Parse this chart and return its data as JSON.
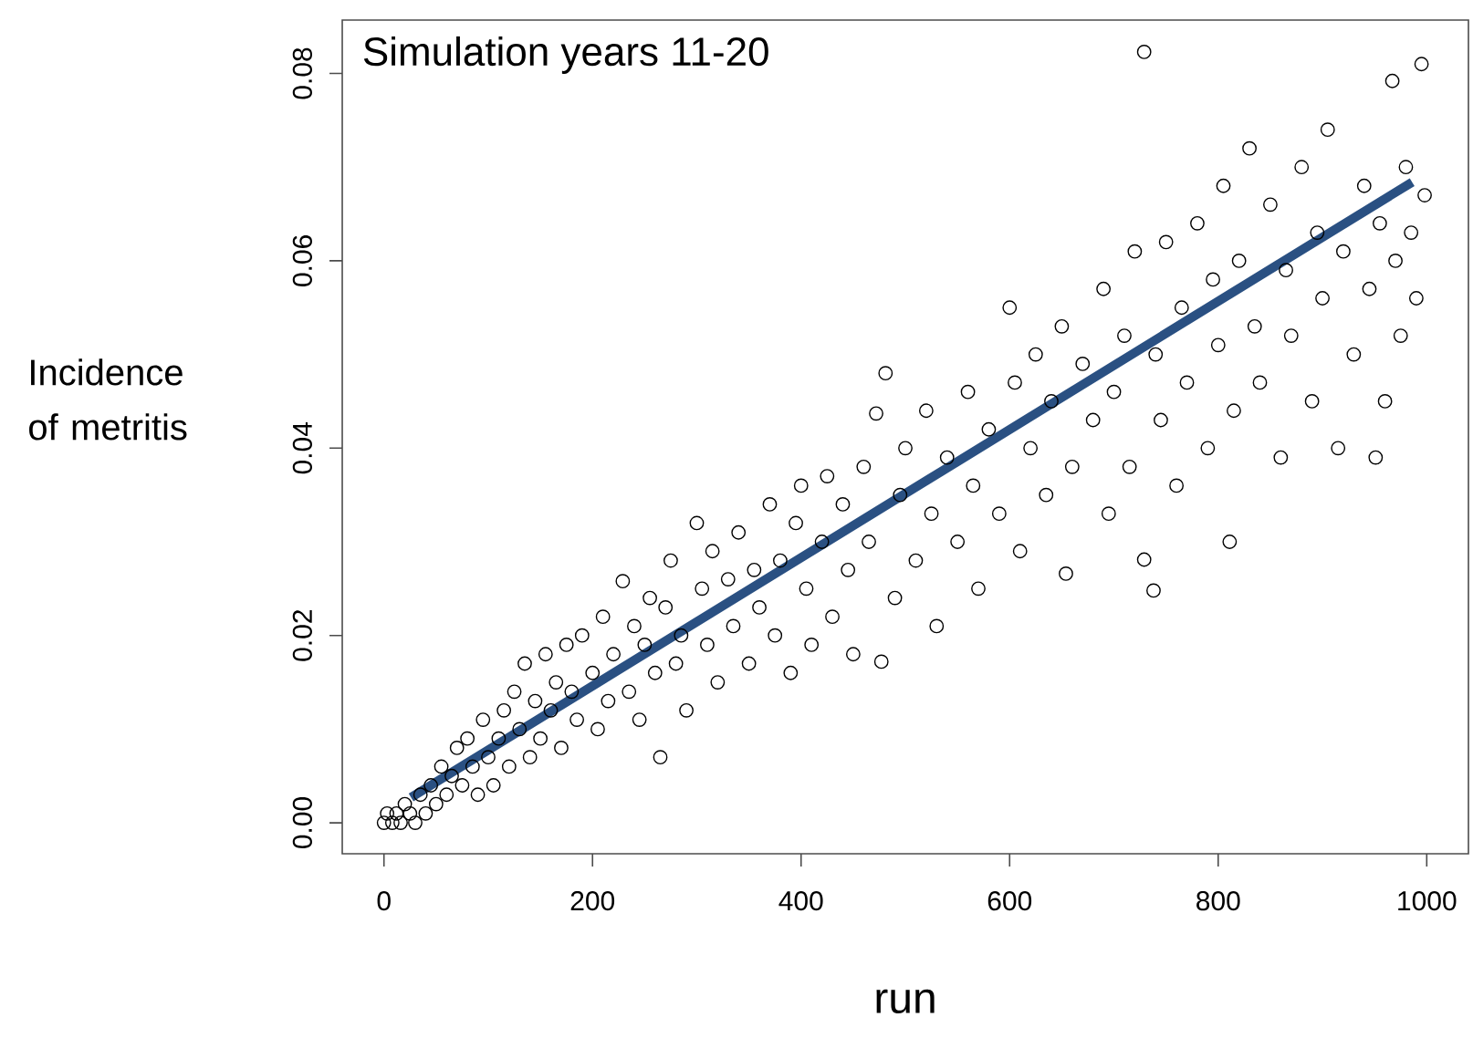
{
  "chart_data": {
    "type": "scatter",
    "title": "Simulation years 11-20",
    "xlabel": "run",
    "ylabel": "Incidence of metritis",
    "xlim": [
      -40,
      1040
    ],
    "ylim": [
      -0.0033,
      0.0857
    ],
    "xticks": [
      0,
      200,
      400,
      600,
      800,
      1000
    ],
    "yticks": [
      {
        "value": 0,
        "label": "0.00"
      },
      {
        "value": 0.02,
        "label": "0.02"
      },
      {
        "value": 0.04,
        "label": "0.04"
      },
      {
        "value": 0.06,
        "label": "0.06"
      },
      {
        "value": 0.08,
        "label": "0.08"
      }
    ],
    "marker": "circle",
    "series": [
      {
        "type": "scatter",
        "color": "#000000",
        "x": [
          0,
          3,
          8,
          12,
          16,
          20,
          25,
          30,
          35,
          40,
          45,
          50,
          55,
          60,
          65,
          70,
          75,
          80,
          85,
          90,
          95,
          100,
          105,
          110,
          115,
          120,
          125,
          130,
          135,
          140,
          145,
          150,
          155,
          160,
          165,
          170,
          175,
          180,
          185,
          190,
          200,
          205,
          210,
          215,
          220,
          229,
          235,
          240,
          245,
          250,
          255,
          260,
          265,
          270,
          275,
          280,
          285,
          290,
          300,
          305,
          310,
          315,
          320,
          330,
          335,
          340,
          350,
          355,
          360,
          370,
          375,
          380,
          390,
          395,
          400,
          405,
          410,
          420,
          425,
          430,
          440,
          445,
          450,
          460,
          465,
          472,
          477,
          481,
          490,
          495,
          500,
          510,
          520,
          525,
          530,
          540,
          550,
          560,
          565,
          570,
          580,
          590,
          600,
          605,
          610,
          620,
          625,
          635,
          640,
          650,
          654,
          660,
          670,
          680,
          690,
          695,
          700,
          710,
          715,
          720,
          729,
          729,
          738,
          740,
          745,
          750,
          760,
          765,
          770,
          780,
          790,
          795,
          800,
          805,
          811,
          815,
          820,
          830,
          835,
          840,
          850,
          860,
          865,
          870,
          880,
          890,
          895,
          900,
          905,
          915,
          920,
          930,
          940,
          945,
          951,
          955,
          960,
          967,
          970,
          975,
          980,
          985,
          990,
          995,
          998
        ],
        "values": [
          0,
          0.001,
          0,
          0.001,
          0,
          0.002,
          0.001,
          0,
          0.003,
          0.001,
          0.004,
          0.002,
          0.006,
          0.003,
          0.005,
          0.008,
          0.004,
          0.009,
          0.006,
          0.003,
          0.011,
          0.007,
          0.004,
          0.009,
          0.012,
          0.006,
          0.014,
          0.01,
          0.017,
          0.007,
          0.013,
          0.009,
          0.018,
          0.012,
          0.015,
          0.008,
          0.019,
          0.014,
          0.011,
          0.02,
          0.016,
          0.01,
          0.022,
          0.013,
          0.018,
          0.0258,
          0.014,
          0.021,
          0.011,
          0.019,
          0.024,
          0.016,
          0.007,
          0.023,
          0.028,
          0.017,
          0.02,
          0.012,
          0.032,
          0.025,
          0.019,
          0.029,
          0.015,
          0.026,
          0.021,
          0.031,
          0.017,
          0.027,
          0.023,
          0.034,
          0.02,
          0.028,
          0.016,
          0.032,
          0.036,
          0.025,
          0.019,
          0.03,
          0.037,
          0.022,
          0.034,
          0.027,
          0.018,
          0.038,
          0.03,
          0.0437,
          0.0172,
          0.048,
          0.024,
          0.035,
          0.04,
          0.028,
          0.044,
          0.033,
          0.021,
          0.039,
          0.03,
          0.046,
          0.036,
          0.025,
          0.042,
          0.033,
          0.055,
          0.047,
          0.029,
          0.04,
          0.05,
          0.035,
          0.045,
          0.053,
          0.0266,
          0.038,
          0.049,
          0.043,
          0.057,
          0.033,
          0.046,
          0.052,
          0.038,
          0.061,
          0.0823,
          0.0281,
          0.0248,
          0.05,
          0.043,
          0.062,
          0.036,
          0.055,
          0.047,
          0.064,
          0.04,
          0.058,
          0.051,
          0.068,
          0.03,
          0.044,
          0.06,
          0.072,
          0.053,
          0.047,
          0.066,
          0.039,
          0.059,
          0.052,
          0.07,
          0.045,
          0.063,
          0.056,
          0.074,
          0.04,
          0.061,
          0.05,
          0.068,
          0.057,
          0.039,
          0.064,
          0.045,
          0.0792,
          0.06,
          0.052,
          0.07,
          0.063,
          0.056,
          0.081,
          0.067
        ]
      },
      {
        "type": "line",
        "color": "#2a5082",
        "marker": "none",
        "x": [
          26,
          986
        ],
        "values": [
          0.0027,
          0.0684
        ]
      }
    ]
  }
}
